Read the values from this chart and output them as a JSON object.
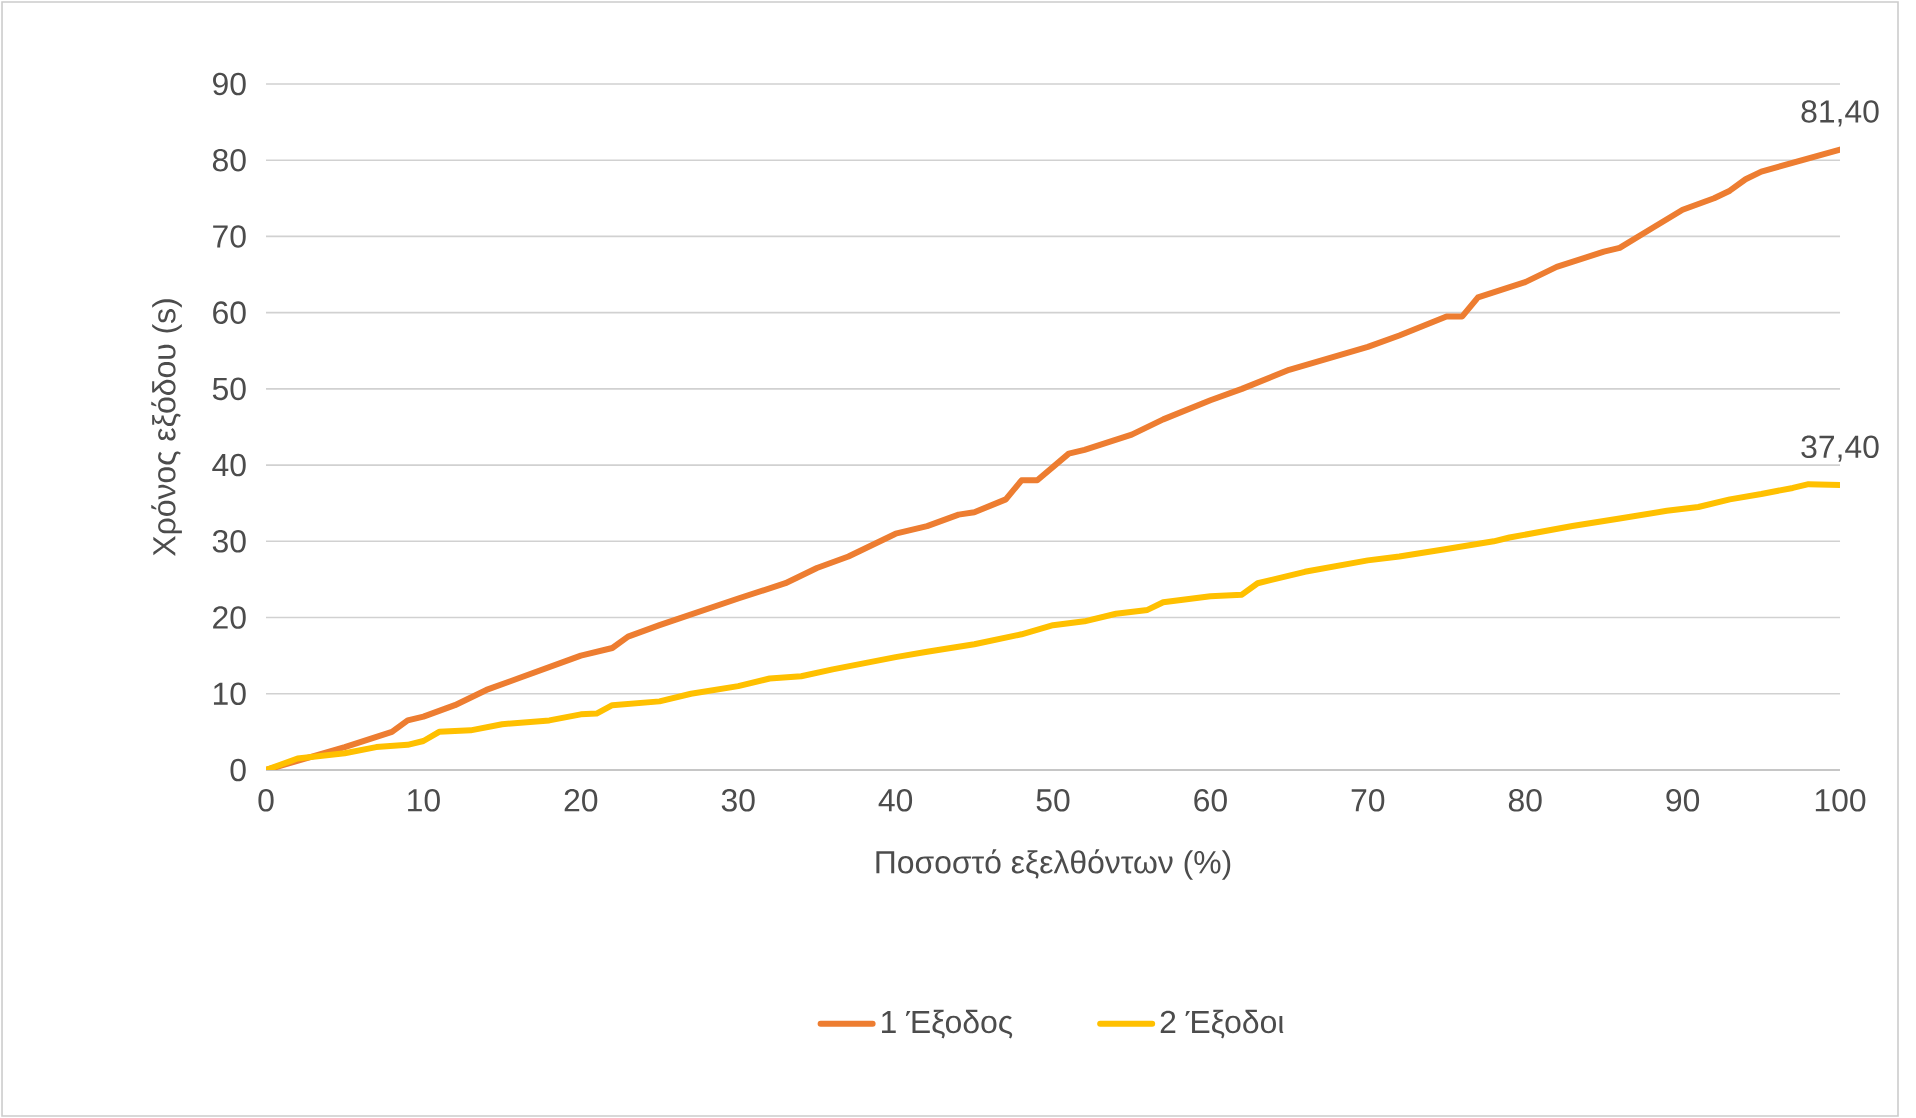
{
  "chart_data": {
    "type": "line",
    "xlabel": "Ποσοστό εξελθόντων (%)",
    "ylabel": "Χρόνος εξόδου (s)",
    "xlim": [
      0,
      100
    ],
    "xticks": [
      0,
      10,
      20,
      30,
      40,
      50,
      60,
      70,
      80,
      90,
      100
    ],
    "ylim": [
      0,
      90
    ],
    "yticks": [
      0,
      10,
      20,
      30,
      40,
      50,
      60,
      70,
      80,
      90
    ],
    "grid": "y",
    "legend": "bottom",
    "marker": "none",
    "line_style": "solid",
    "series": [
      {
        "name": "1 Έξοδος",
        "color": "#ed7d31",
        "x": [
          0,
          5,
          8,
          9,
          10,
          12,
          14,
          16,
          20,
          22,
          23,
          25,
          30,
          33,
          35,
          37,
          40,
          42,
          44,
          45,
          47,
          48,
          49,
          51,
          52,
          55,
          57,
          60,
          62,
          65,
          70,
          72,
          75,
          76,
          77,
          80,
          82,
          85,
          86,
          88,
          90,
          92,
          93,
          94,
          95,
          100
        ],
        "values": [
          0,
          3,
          5,
          6.5,
          7,
          8.5,
          10.5,
          12,
          15,
          16,
          17.5,
          19,
          22.5,
          24.5,
          26.5,
          28,
          31,
          32,
          33.5,
          33.8,
          35.5,
          38,
          38,
          41.5,
          42,
          44,
          46,
          48.5,
          50,
          52.5,
          55.5,
          57,
          59.5,
          59.5,
          62,
          64,
          66,
          68,
          68.5,
          71,
          73.5,
          75,
          76,
          77.5,
          78.5,
          81.4
        ],
        "value_labels": [
          null,
          null,
          null,
          null,
          null,
          null,
          null,
          null,
          null,
          null,
          null,
          null,
          null,
          null,
          null,
          null,
          null,
          null,
          null,
          null,
          null,
          null,
          null,
          null,
          null,
          null,
          null,
          null,
          null,
          null,
          null,
          null,
          null,
          null,
          null,
          null,
          null,
          null,
          null,
          null,
          null,
          null,
          null,
          null,
          null,
          "81,40"
        ]
      },
      {
        "name": "2 Έξοδοι",
        "color": "#ffc000",
        "x": [
          0,
          2,
          5,
          7,
          9,
          10,
          11,
          13,
          15,
          18,
          20,
          21,
          22,
          25,
          27,
          30,
          32,
          34,
          36,
          40,
          42,
          45,
          48,
          50,
          52,
          54,
          56,
          57,
          60,
          62,
          63,
          66,
          70,
          72,
          75,
          78,
          79,
          83,
          86,
          89,
          91,
          93,
          95,
          97,
          98,
          100
        ],
        "values": [
          0,
          1.5,
          2.2,
          3,
          3.3,
          3.8,
          5,
          5.2,
          6,
          6.5,
          7.3,
          7.4,
          8.5,
          9,
          10,
          11,
          12,
          12.3,
          13.2,
          14.8,
          15.5,
          16.5,
          17.8,
          19,
          19.5,
          20.5,
          21,
          22,
          22.8,
          23,
          24.5,
          26,
          27.5,
          28,
          29,
          30,
          30.5,
          32,
          33,
          34,
          34.5,
          35.5,
          36.2,
          37,
          37.5,
          37.4
        ],
        "value_labels": [
          null,
          null,
          null,
          null,
          null,
          null,
          null,
          null,
          null,
          null,
          null,
          null,
          null,
          null,
          null,
          null,
          null,
          null,
          null,
          null,
          null,
          null,
          null,
          null,
          null,
          null,
          null,
          null,
          null,
          null,
          null,
          null,
          null,
          null,
          null,
          null,
          null,
          null,
          null,
          null,
          null,
          null,
          null,
          null,
          null,
          "37,40"
        ]
      }
    ]
  }
}
